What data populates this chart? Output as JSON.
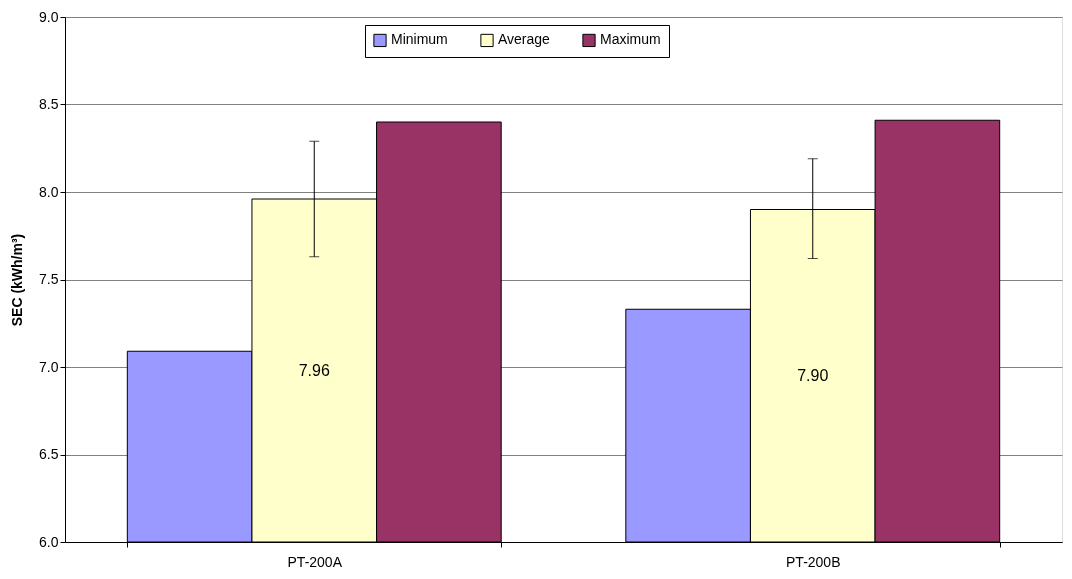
{
  "chart_data": {
    "type": "bar",
    "ylabel": "SEC (kWh/m³)",
    "categories": [
      "PT-200A",
      "PT-200B"
    ],
    "series": [
      {
        "name": "Minimum",
        "color": "#9999ff",
        "values": [
          7.09,
          7.33
        ]
      },
      {
        "name": "Average",
        "color": "#ffffcc",
        "values": [
          7.96,
          7.9
        ],
        "value_labels": [
          "7.96",
          "7.90"
        ],
        "errors": [
          [
            7.63,
            8.29
          ],
          [
            7.62,
            8.19
          ]
        ]
      },
      {
        "name": "Maximum",
        "color": "#993366",
        "values": [
          8.4,
          8.41
        ]
      }
    ],
    "ylim": [
      6.0,
      9.0
    ],
    "yticks": [
      {
        "value": 6,
        "label": "6.0"
      },
      6.5,
      {
        "value": 7,
        "label": "7.0"
      },
      7.5,
      {
        "value": 8,
        "label": "8.0"
      },
      8.5,
      {
        "value": 9,
        "label": "9.0"
      }
    ],
    "grid": "y",
    "legend": "top"
  }
}
